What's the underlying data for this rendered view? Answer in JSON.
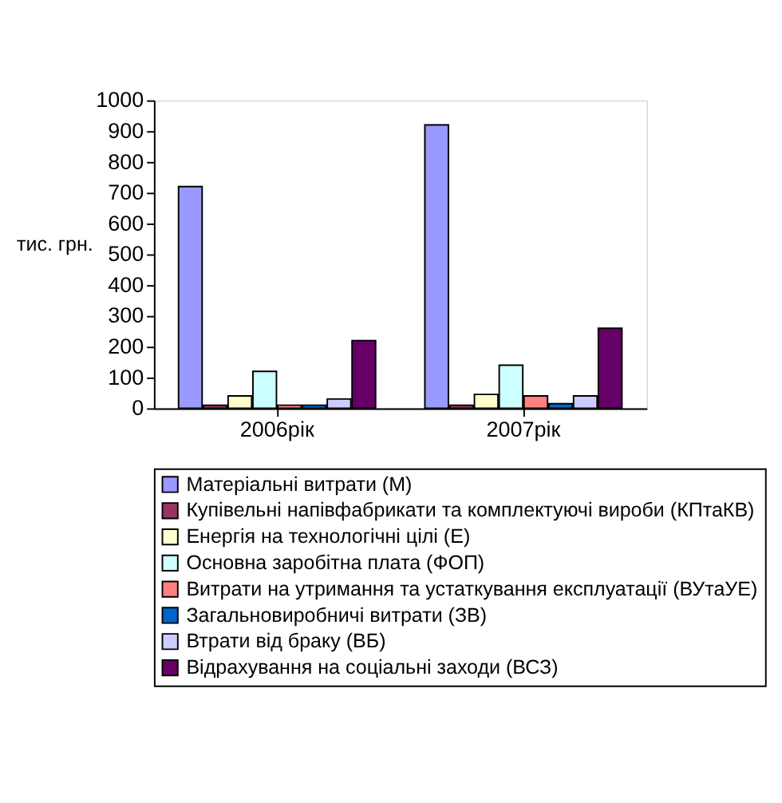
{
  "chart_data": {
    "type": "bar",
    "ylabel": "тис. грн.",
    "categories": [
      "2006рік",
      "2007рік"
    ],
    "series": [
      {
        "name": "Матеріальні витрати (М)",
        "color": "#9999ff",
        "values": [
          720,
          920
        ]
      },
      {
        "name": "Купівельні напівфабрикати та комплектуючі вироби (КПтаКВ)",
        "color": "#993366",
        "values": [
          10,
          10
        ]
      },
      {
        "name": "Енергія на технологічні цілі (Е)",
        "color": "#ffffcc",
        "values": [
          40,
          45
        ]
      },
      {
        "name": "Основна заробітна плата (ФОП)",
        "color": "#ccffff",
        "values": [
          120,
          140
        ]
      },
      {
        "name": "Витрати на утримання та устаткування експлуатації (ВУтаУЕ)",
        "color": "#ff8080",
        "values": [
          10,
          40
        ]
      },
      {
        "name": "Загальновиробничі витрати (ЗВ)",
        "color": "#0066cc",
        "values": [
          10,
          15
        ]
      },
      {
        "name": "Втрати від браку (ВБ)",
        "color": "#ccccff",
        "values": [
          30,
          40
        ]
      },
      {
        "name": "Відрахування на соціальні заходи (ВСЗ)",
        "color": "#660066",
        "values": [
          220,
          260
        ]
      }
    ],
    "ylim": [
      0,
      1000
    ],
    "yticks": [
      0,
      100,
      200,
      300,
      400,
      500,
      600,
      700,
      800,
      900,
      1000
    ],
    "grid": false,
    "legend": "bottom"
  }
}
